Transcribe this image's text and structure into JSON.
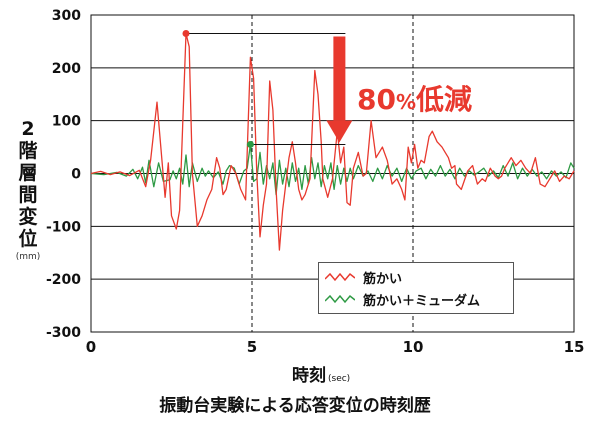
{
  "chart_data": {
    "type": "line",
    "ylabel_chars": [
      "2",
      "階",
      "層",
      "間",
      "変",
      "位"
    ],
    "yunit": "(mm)",
    "xlabel": "時刻",
    "xunit": "(sec)",
    "caption": "振動台実験による応答変位の時刻歴",
    "annotation": {
      "value": "80",
      "pct": "%",
      "text": "低減"
    },
    "xlim": [
      0,
      15
    ],
    "ylim": [
      -300,
      300
    ],
    "xticks": [
      0,
      5,
      10,
      15
    ],
    "yticks": [
      300,
      200,
      100,
      0,
      -100,
      -200,
      -300
    ],
    "grid": "horizontal + vertical dashed at 5 and 10",
    "legend_position": "lower-right",
    "colors": {
      "red": "#e8392e",
      "green": "#2e9a44",
      "annotation": "#e8392e"
    },
    "series": [
      {
        "name": "筋かい",
        "color": "#e8392e",
        "points": [
          [
            0,
            0
          ],
          [
            0.3,
            4
          ],
          [
            0.6,
            -2
          ],
          [
            0.9,
            3
          ],
          [
            1.2,
            -4
          ],
          [
            1.5,
            6
          ],
          [
            1.7,
            -25
          ],
          [
            1.85,
            25
          ],
          [
            2.05,
            135
          ],
          [
            2.3,
            -45
          ],
          [
            2.4,
            20
          ],
          [
            2.5,
            -80
          ],
          [
            2.65,
            -105
          ],
          [
            2.75,
            -70
          ],
          [
            2.95,
            265
          ],
          [
            3.05,
            240
          ],
          [
            3.15,
            0
          ],
          [
            3.3,
            -100
          ],
          [
            3.45,
            -80
          ],
          [
            3.6,
            -50
          ],
          [
            3.75,
            -30
          ],
          [
            3.9,
            30
          ],
          [
            4.0,
            10
          ],
          [
            4.1,
            -40
          ],
          [
            4.2,
            -30
          ],
          [
            4.35,
            15
          ],
          [
            4.5,
            0
          ],
          [
            4.65,
            -30
          ],
          [
            4.8,
            -50
          ],
          [
            4.95,
            220
          ],
          [
            5.05,
            180
          ],
          [
            5.15,
            0
          ],
          [
            5.25,
            -120
          ],
          [
            5.35,
            -60
          ],
          [
            5.45,
            -20
          ],
          [
            5.55,
            175
          ],
          [
            5.65,
            120
          ],
          [
            5.75,
            -30
          ],
          [
            5.85,
            -145
          ],
          [
            5.95,
            -70
          ],
          [
            6.05,
            -20
          ],
          [
            6.15,
            30
          ],
          [
            6.25,
            60
          ],
          [
            6.35,
            20
          ],
          [
            6.45,
            -30
          ],
          [
            6.55,
            -50
          ],
          [
            6.65,
            -40
          ],
          [
            6.8,
            -10
          ],
          [
            6.95,
            195
          ],
          [
            7.05,
            150
          ],
          [
            7.15,
            60
          ],
          [
            7.2,
            -10
          ],
          [
            7.35,
            -45
          ],
          [
            7.5,
            -10
          ],
          [
            7.65,
            80
          ],
          [
            7.75,
            20
          ],
          [
            7.85,
            50
          ],
          [
            7.95,
            -55
          ],
          [
            8.05,
            -60
          ],
          [
            8.15,
            10
          ],
          [
            8.3,
            40
          ],
          [
            8.45,
            -5
          ],
          [
            8.55,
            0
          ],
          [
            8.7,
            100
          ],
          [
            8.85,
            30
          ],
          [
            9.05,
            50
          ],
          [
            9.2,
            25
          ],
          [
            9.35,
            -20
          ],
          [
            9.5,
            -10
          ],
          [
            9.65,
            -30
          ],
          [
            9.75,
            -50
          ],
          [
            9.85,
            50
          ],
          [
            9.95,
            20
          ],
          [
            10.05,
            55
          ],
          [
            10.15,
            10
          ],
          [
            10.25,
            25
          ],
          [
            10.35,
            20
          ],
          [
            10.5,
            70
          ],
          [
            10.6,
            80
          ],
          [
            10.75,
            60
          ],
          [
            10.9,
            50
          ],
          [
            11.0,
            40
          ],
          [
            11.1,
            30
          ],
          [
            11.2,
            10
          ],
          [
            11.3,
            15
          ],
          [
            11.35,
            -20
          ],
          [
            11.5,
            -30
          ],
          [
            11.7,
            5
          ],
          [
            11.85,
            15
          ],
          [
            12.0,
            -20
          ],
          [
            12.15,
            -10
          ],
          [
            12.25,
            -15
          ],
          [
            12.4,
            10
          ],
          [
            12.55,
            -5
          ],
          [
            12.65,
            -10
          ],
          [
            12.75,
            -5
          ],
          [
            12.85,
            10
          ],
          [
            12.95,
            20
          ],
          [
            13.05,
            30
          ],
          [
            13.2,
            15
          ],
          [
            13.35,
            25
          ],
          [
            13.5,
            10
          ],
          [
            13.65,
            0
          ],
          [
            13.8,
            30
          ],
          [
            13.95,
            -20
          ],
          [
            14.1,
            -25
          ],
          [
            14.25,
            -10
          ],
          [
            14.4,
            5
          ],
          [
            14.55,
            -15
          ],
          [
            14.7,
            -5
          ],
          [
            14.85,
            -10
          ],
          [
            15.0,
            5
          ]
        ]
      },
      {
        "name": "筋かい＋ミューダム",
        "color": "#2e9a44",
        "points": [
          [
            0,
            0
          ],
          [
            0.4,
            -2
          ],
          [
            0.8,
            2
          ],
          [
            1.1,
            -5
          ],
          [
            1.3,
            8
          ],
          [
            1.45,
            -10
          ],
          [
            1.6,
            12
          ],
          [
            1.7,
            -18
          ],
          [
            1.8,
            25
          ],
          [
            1.95,
            -25
          ],
          [
            2.1,
            20
          ],
          [
            2.25,
            -15
          ],
          [
            2.45,
            -12
          ],
          [
            2.55,
            5
          ],
          [
            2.65,
            -10
          ],
          [
            2.75,
            10
          ],
          [
            2.85,
            -20
          ],
          [
            2.95,
            35
          ],
          [
            3.05,
            -25
          ],
          [
            3.15,
            20
          ],
          [
            3.3,
            -15
          ],
          [
            3.45,
            10
          ],
          [
            3.55,
            -5
          ],
          [
            3.65,
            5
          ],
          [
            3.8,
            -8
          ],
          [
            3.95,
            3
          ],
          [
            4.1,
            -20
          ],
          [
            4.2,
            5
          ],
          [
            4.3,
            15
          ],
          [
            4.45,
            10
          ],
          [
            4.6,
            -20
          ],
          [
            4.75,
            5
          ],
          [
            4.85,
            10
          ],
          [
            4.95,
            55
          ],
          [
            5.05,
            -15
          ],
          [
            5.15,
            -10
          ],
          [
            5.25,
            40
          ],
          [
            5.35,
            -20
          ],
          [
            5.45,
            15
          ],
          [
            5.55,
            -10
          ],
          [
            5.65,
            20
          ],
          [
            5.75,
            -40
          ],
          [
            5.85,
            25
          ],
          [
            5.95,
            -20
          ],
          [
            6.05,
            10
          ],
          [
            6.15,
            -25
          ],
          [
            6.25,
            20
          ],
          [
            6.35,
            -15
          ],
          [
            6.45,
            10
          ],
          [
            6.55,
            -30
          ],
          [
            6.65,
            15
          ],
          [
            6.75,
            -20
          ],
          [
            6.85,
            30
          ],
          [
            6.95,
            -10
          ],
          [
            7.05,
            20
          ],
          [
            7.15,
            -25
          ],
          [
            7.25,
            15
          ],
          [
            7.35,
            -10
          ],
          [
            7.45,
            20
          ],
          [
            7.55,
            -30
          ],
          [
            7.65,
            15
          ],
          [
            7.75,
            -20
          ],
          [
            7.85,
            10
          ],
          [
            7.95,
            -15
          ],
          [
            8.05,
            10
          ],
          [
            8.15,
            -10
          ],
          [
            8.3,
            15
          ],
          [
            8.45,
            -5
          ],
          [
            8.6,
            5
          ],
          [
            8.75,
            -15
          ],
          [
            8.9,
            10
          ],
          [
            9.05,
            -10
          ],
          [
            9.2,
            15
          ],
          [
            9.35,
            -5
          ],
          [
            9.5,
            10
          ],
          [
            9.65,
            -15
          ],
          [
            9.8,
            10
          ],
          [
            9.95,
            -10
          ],
          [
            10.1,
            5
          ],
          [
            10.25,
            10
          ],
          [
            10.4,
            -10
          ],
          [
            10.55,
            8
          ],
          [
            10.7,
            -5
          ],
          [
            10.85,
            15
          ],
          [
            11.0,
            -5
          ],
          [
            11.15,
            8
          ],
          [
            11.3,
            -10
          ],
          [
            11.45,
            10
          ],
          [
            11.6,
            -5
          ],
          [
            11.75,
            5
          ],
          [
            11.9,
            -3
          ],
          [
            12.05,
            3
          ],
          [
            12.2,
            10
          ],
          [
            12.35,
            -5
          ],
          [
            12.5,
            5
          ],
          [
            12.65,
            -8
          ],
          [
            12.8,
            15
          ],
          [
            12.95,
            -5
          ],
          [
            13.1,
            20
          ],
          [
            13.25,
            -10
          ],
          [
            13.4,
            10
          ],
          [
            13.55,
            -5
          ],
          [
            13.7,
            8
          ],
          [
            13.85,
            -5
          ],
          [
            14.0,
            3
          ],
          [
            14.15,
            -10
          ],
          [
            14.3,
            5
          ],
          [
            14.45,
            -5
          ],
          [
            14.6,
            3
          ],
          [
            14.75,
            -8
          ],
          [
            14.9,
            20
          ],
          [
            15.0,
            10
          ]
        ]
      }
    ],
    "markers": [
      {
        "series": 0,
        "x": 2.95,
        "y": 265,
        "line_to_x": 7.9
      },
      {
        "series": 1,
        "x": 4.95,
        "y": 55,
        "line_to_x": 7.9
      }
    ]
  }
}
